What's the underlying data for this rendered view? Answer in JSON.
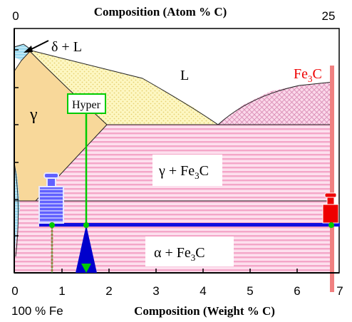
{
  "diagram": {
    "top_axis": {
      "title": "Composition  (Atom % C)",
      "ticks": [
        "0",
        "25"
      ]
    },
    "bottom_axis": {
      "title": "Composition (Weight % C)",
      "ticks": [
        "0",
        "1",
        "2",
        "3",
        "4",
        "5",
        "6",
        "7"
      ],
      "origin_label": "100 % Fe"
    },
    "regions": {
      "delta_liquid": "δ + L",
      "liquid": "L",
      "gamma": "γ",
      "gamma_fe3c": {
        "symbol": "γ",
        "text": " + Fe",
        "sub": "3",
        "tail": "C"
      },
      "alpha_fe3c": {
        "symbol": "α",
        "text": " + Fe",
        "sub": "3",
        "tail": "C"
      }
    },
    "fe3c_label": {
      "text": "Fe",
      "sub": "3",
      "tail": "C"
    },
    "hyper_label": "Hyper",
    "lever": {
      "fulcrum_composition": 1.55,
      "alpha_end_composition": 0.8,
      "fe3c_end_composition": 6.7
    },
    "colors": {
      "lever_bar": "#1010e0",
      "indicator_line": "#00cc00",
      "fe3c_line": "#f08080",
      "fe3c_weight": "#ee0000",
      "alpha_weight": "#6060ff"
    }
  }
}
